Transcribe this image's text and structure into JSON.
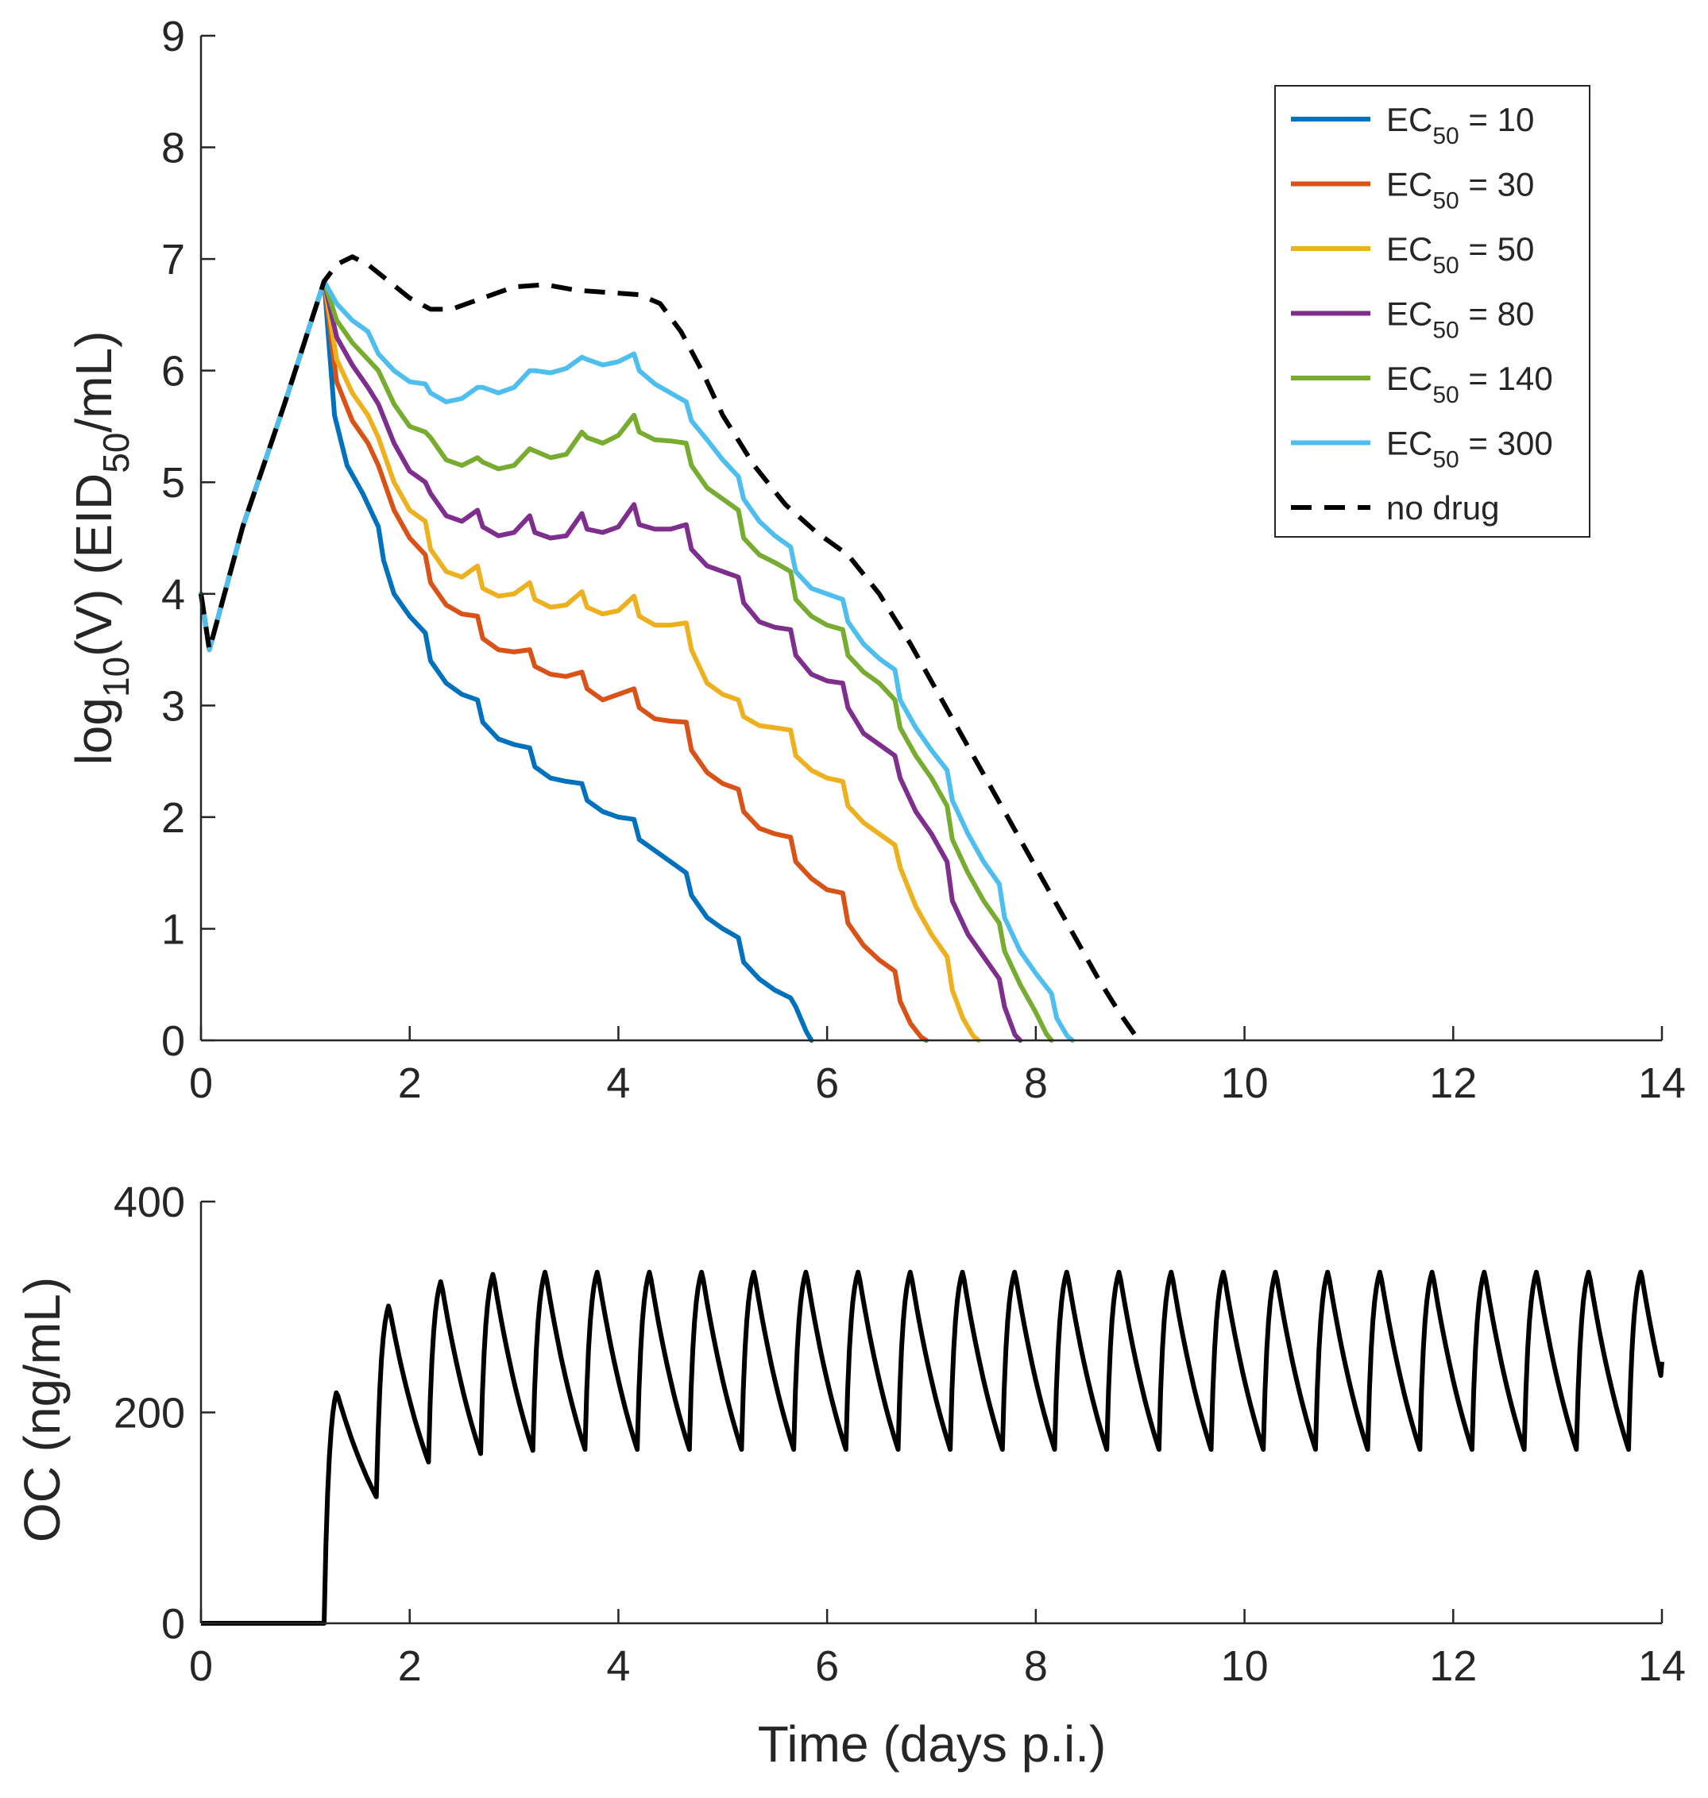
{
  "chart_data": [
    {
      "type": "line",
      "panel": "top",
      "ylabel": {
        "base": "log",
        "sub1": "10",
        "mid": "(V) (EID",
        "sub2": "50",
        "end": "/mL)"
      },
      "xlabel": "",
      "xlim": [
        0,
        14
      ],
      "ylim": [
        0,
        9
      ],
      "xticks": [
        0,
        2,
        4,
        6,
        8,
        10,
        12,
        14
      ],
      "xtick_labels": [
        "0",
        "2",
        "4",
        "6",
        "8",
        "10",
        "12",
        "14"
      ],
      "yticks": [
        0,
        1,
        2,
        3,
        4,
        5,
        6,
        7,
        8,
        9
      ],
      "ytick_labels": [
        "0",
        "1",
        "2",
        "3",
        "4",
        "5",
        "6",
        "7",
        "8",
        "9"
      ],
      "grid": false,
      "legend_position": "top-right",
      "shared_rise": {
        "x": [
          0.0,
          0.08,
          0.4,
          0.8,
          1.18
        ],
        "y": [
          4.0,
          3.5,
          4.6,
          5.7,
          6.8
        ]
      },
      "series": [
        {
          "name": "EC50 = 10",
          "legend": {
            "pre": "EC",
            "sub": "50",
            "post": " = 10"
          },
          "color": "#0072BD",
          "dash": false,
          "x": [
            1.18,
            1.28,
            1.4,
            1.55,
            1.7,
            1.75,
            1.85,
            2.0,
            2.15,
            2.2,
            2.35,
            2.5,
            2.65,
            2.7,
            2.85,
            3.0,
            3.15,
            3.2,
            3.35,
            3.5,
            3.65,
            3.7,
            3.85,
            4.0,
            4.15,
            4.2,
            4.35,
            4.5,
            4.65,
            4.7,
            4.85,
            5.0,
            5.15,
            5.2,
            5.35,
            5.5,
            5.65,
            5.7,
            5.8,
            5.85
          ],
          "y": [
            6.8,
            5.6,
            5.15,
            4.9,
            4.6,
            4.3,
            4.0,
            3.8,
            3.65,
            3.4,
            3.2,
            3.1,
            3.05,
            2.85,
            2.7,
            2.65,
            2.62,
            2.45,
            2.35,
            2.32,
            2.3,
            2.15,
            2.05,
            2.0,
            1.98,
            1.8,
            1.7,
            1.6,
            1.5,
            1.3,
            1.1,
            1.0,
            0.92,
            0.7,
            0.55,
            0.45,
            0.38,
            0.3,
            0.08,
            0.0
          ]
        },
        {
          "name": "EC50 = 30",
          "legend": {
            "pre": "EC",
            "sub": "50",
            "post": " = 30"
          },
          "color": "#D95319",
          "dash": false,
          "x": [
            1.18,
            1.3,
            1.45,
            1.6,
            1.7,
            1.85,
            2.0,
            2.15,
            2.2,
            2.35,
            2.5,
            2.65,
            2.7,
            2.85,
            3.0,
            3.15,
            3.2,
            3.35,
            3.5,
            3.65,
            3.7,
            3.85,
            4.0,
            4.15,
            4.2,
            4.35,
            4.5,
            4.65,
            4.7,
            4.85,
            5.0,
            5.15,
            5.2,
            5.35,
            5.5,
            5.65,
            5.7,
            5.85,
            6.0,
            6.15,
            6.2,
            6.35,
            6.5,
            6.65,
            6.7,
            6.8,
            6.9,
            6.95
          ],
          "y": [
            6.8,
            5.9,
            5.55,
            5.35,
            5.15,
            4.75,
            4.5,
            4.35,
            4.1,
            3.9,
            3.82,
            3.8,
            3.6,
            3.5,
            3.48,
            3.5,
            3.35,
            3.28,
            3.26,
            3.3,
            3.15,
            3.05,
            3.1,
            3.15,
            2.98,
            2.88,
            2.86,
            2.85,
            2.6,
            2.4,
            2.3,
            2.25,
            2.05,
            1.9,
            1.85,
            1.82,
            1.6,
            1.45,
            1.35,
            1.32,
            1.05,
            0.85,
            0.72,
            0.62,
            0.35,
            0.15,
            0.03,
            0.0
          ]
        },
        {
          "name": "EC50 = 50",
          "legend": {
            "pre": "EC",
            "sub": "50",
            "post": " = 50"
          },
          "color": "#EDB120",
          "dash": false,
          "x": [
            1.18,
            1.3,
            1.45,
            1.6,
            1.7,
            1.85,
            2.0,
            2.15,
            2.2,
            2.35,
            2.5,
            2.65,
            2.7,
            2.85,
            3.0,
            3.15,
            3.2,
            3.35,
            3.5,
            3.65,
            3.7,
            3.85,
            4.0,
            4.15,
            4.2,
            4.35,
            4.5,
            4.65,
            4.7,
            4.85,
            5.0,
            5.15,
            5.2,
            5.35,
            5.5,
            5.65,
            5.7,
            5.85,
            6.0,
            6.15,
            6.2,
            6.35,
            6.5,
            6.65,
            6.7,
            6.85,
            7.0,
            7.15,
            7.2,
            7.3,
            7.4,
            7.45
          ],
          "y": [
            6.8,
            6.1,
            5.8,
            5.6,
            5.4,
            5.0,
            4.75,
            4.65,
            4.4,
            4.2,
            4.15,
            4.25,
            4.05,
            3.98,
            4.0,
            4.1,
            3.95,
            3.88,
            3.9,
            4.02,
            3.88,
            3.82,
            3.85,
            3.98,
            3.8,
            3.72,
            3.72,
            3.74,
            3.5,
            3.2,
            3.1,
            3.05,
            2.9,
            2.82,
            2.8,
            2.78,
            2.55,
            2.42,
            2.35,
            2.32,
            2.1,
            1.95,
            1.85,
            1.75,
            1.55,
            1.2,
            0.95,
            0.75,
            0.45,
            0.2,
            0.04,
            0.0
          ]
        },
        {
          "name": "EC50 = 80",
          "legend": {
            "pre": "EC",
            "sub": "50",
            "post": " = 80"
          },
          "color": "#7E2F8E",
          "dash": false,
          "x": [
            1.18,
            1.3,
            1.45,
            1.6,
            1.7,
            1.85,
            2.0,
            2.15,
            2.2,
            2.35,
            2.5,
            2.65,
            2.7,
            2.85,
            3.0,
            3.15,
            3.2,
            3.35,
            3.5,
            3.65,
            3.7,
            3.85,
            4.0,
            4.15,
            4.2,
            4.35,
            4.5,
            4.65,
            4.7,
            4.85,
            5.0,
            5.15,
            5.2,
            5.35,
            5.5,
            5.65,
            5.7,
            5.85,
            6.0,
            6.15,
            6.2,
            6.35,
            6.5,
            6.65,
            6.7,
            6.85,
            7.0,
            7.15,
            7.2,
            7.35,
            7.5,
            7.65,
            7.7,
            7.8,
            7.85
          ],
          "y": [
            6.8,
            6.3,
            6.05,
            5.85,
            5.7,
            5.35,
            5.1,
            5.0,
            4.9,
            4.7,
            4.65,
            4.75,
            4.6,
            4.52,
            4.55,
            4.7,
            4.55,
            4.5,
            4.52,
            4.72,
            4.58,
            4.55,
            4.6,
            4.8,
            4.62,
            4.58,
            4.58,
            4.62,
            4.4,
            4.25,
            4.2,
            4.15,
            3.92,
            3.75,
            3.7,
            3.68,
            3.45,
            3.28,
            3.22,
            3.2,
            2.98,
            2.75,
            2.65,
            2.55,
            2.35,
            2.05,
            1.85,
            1.6,
            1.25,
            0.95,
            0.75,
            0.55,
            0.3,
            0.05,
            0.0
          ]
        },
        {
          "name": "EC50 = 140",
          "legend": {
            "pre": "EC",
            "sub": "50",
            "post": " = 140"
          },
          "color": "#77AC30",
          "dash": false,
          "x": [
            1.18,
            1.3,
            1.45,
            1.6,
            1.7,
            1.85,
            2.0,
            2.15,
            2.2,
            2.35,
            2.5,
            2.65,
            2.7,
            2.85,
            3.0,
            3.15,
            3.2,
            3.35,
            3.5,
            3.65,
            3.7,
            3.85,
            4.0,
            4.15,
            4.2,
            4.35,
            4.5,
            4.65,
            4.7,
            4.85,
            5.0,
            5.15,
            5.2,
            5.35,
            5.5,
            5.65,
            5.7,
            5.85,
            6.0,
            6.15,
            6.2,
            6.35,
            6.5,
            6.65,
            6.7,
            6.85,
            7.0,
            7.15,
            7.2,
            7.35,
            7.5,
            7.65,
            7.7,
            7.85,
            8.0,
            8.1,
            8.15
          ],
          "y": [
            6.8,
            6.45,
            6.25,
            6.1,
            6.0,
            5.7,
            5.5,
            5.45,
            5.4,
            5.2,
            5.15,
            5.22,
            5.18,
            5.12,
            5.15,
            5.3,
            5.28,
            5.22,
            5.25,
            5.45,
            5.4,
            5.35,
            5.42,
            5.6,
            5.45,
            5.38,
            5.37,
            5.35,
            5.15,
            4.95,
            4.85,
            4.75,
            4.5,
            4.35,
            4.28,
            4.2,
            3.95,
            3.8,
            3.72,
            3.68,
            3.45,
            3.3,
            3.2,
            3.05,
            2.8,
            2.55,
            2.35,
            2.1,
            1.8,
            1.5,
            1.25,
            1.05,
            0.8,
            0.5,
            0.25,
            0.06,
            0.0
          ]
        },
        {
          "name": "EC50 = 300",
          "legend": {
            "pre": "EC",
            "sub": "50",
            "post": " = 300"
          },
          "color": "#4DBEEE",
          "dash": false,
          "x": [
            1.18,
            1.3,
            1.45,
            1.6,
            1.7,
            1.85,
            2.0,
            2.15,
            2.2,
            2.35,
            2.5,
            2.65,
            2.7,
            2.85,
            3.0,
            3.15,
            3.2,
            3.35,
            3.5,
            3.65,
            3.7,
            3.85,
            4.0,
            4.15,
            4.2,
            4.35,
            4.5,
            4.65,
            4.7,
            4.85,
            5.0,
            5.15,
            5.2,
            5.35,
            5.5,
            5.65,
            5.7,
            5.85,
            6.0,
            6.15,
            6.2,
            6.35,
            6.5,
            6.65,
            6.7,
            6.85,
            7.0,
            7.15,
            7.2,
            7.35,
            7.5,
            7.65,
            7.7,
            7.85,
            8.0,
            8.15,
            8.2,
            8.3,
            8.35
          ],
          "y": [
            6.75,
            6.6,
            6.45,
            6.35,
            6.15,
            6.0,
            5.9,
            5.88,
            5.8,
            5.72,
            5.75,
            5.85,
            5.85,
            5.8,
            5.85,
            6.0,
            6.0,
            5.98,
            6.02,
            6.12,
            6.1,
            6.05,
            6.08,
            6.15,
            6.0,
            5.88,
            5.8,
            5.72,
            5.55,
            5.38,
            5.2,
            5.05,
            4.85,
            4.65,
            4.52,
            4.42,
            4.2,
            4.05,
            4.0,
            3.95,
            3.75,
            3.55,
            3.42,
            3.32,
            3.05,
            2.8,
            2.6,
            2.42,
            2.15,
            1.85,
            1.6,
            1.4,
            1.1,
            0.8,
            0.6,
            0.42,
            0.2,
            0.04,
            0.0
          ]
        },
        {
          "name": "no drug",
          "legend": {
            "pre": "no drug",
            "sub": "",
            "post": ""
          },
          "color": "#000000",
          "dash": true,
          "x": [
            1.18,
            1.3,
            1.45,
            1.6,
            1.8,
            2.0,
            2.2,
            2.4,
            2.7,
            3.0,
            3.3,
            3.6,
            3.9,
            4.2,
            4.4,
            4.6,
            4.8,
            5.0,
            5.3,
            5.6,
            5.9,
            6.2,
            6.5,
            6.8,
            7.1,
            7.4,
            7.7,
            8.0,
            8.3,
            8.6,
            8.8,
            8.95,
            9.0
          ],
          "y": [
            6.8,
            6.95,
            7.02,
            6.95,
            6.8,
            6.65,
            6.55,
            6.55,
            6.65,
            6.75,
            6.77,
            6.72,
            6.7,
            6.68,
            6.6,
            6.35,
            6.0,
            5.6,
            5.15,
            4.8,
            4.55,
            4.35,
            4.0,
            3.55,
            3.05,
            2.55,
            2.05,
            1.55,
            1.05,
            0.55,
            0.25,
            0.05,
            0.0
          ]
        }
      ]
    },
    {
      "type": "line",
      "panel": "bottom",
      "ylabel": "OC (ng/mL)",
      "xlabel": "Time (days p.i.)",
      "xlim": [
        0,
        14
      ],
      "ylim": [
        0,
        400
      ],
      "xticks": [
        0,
        2,
        4,
        6,
        8,
        10,
        12,
        14
      ],
      "xtick_labels": [
        "0",
        "2",
        "4",
        "6",
        "8",
        "10",
        "12",
        "14"
      ],
      "yticks": [
        0,
        200,
        400
      ],
      "ytick_labels": [
        "0",
        "200",
        "400"
      ],
      "grid": false,
      "dosing": {
        "first_dose_day": 1.18,
        "interval_days": 0.5,
        "end_day": 14.0
      },
      "peaks": [
        220,
        302,
        325,
        332,
        334,
        334,
        334,
        334,
        334,
        334,
        334,
        334,
        334,
        334,
        334,
        334,
        334,
        334,
        334,
        334,
        334,
        334,
        334,
        334,
        334,
        334
      ],
      "troughs": [
        120,
        153,
        161,
        164,
        165,
        165,
        165,
        165,
        165,
        165,
        165,
        165,
        165,
        165,
        165,
        165,
        165,
        165,
        165,
        165,
        165,
        165,
        165,
        165,
        165
      ],
      "end_value": 248,
      "series": [
        {
          "name": "OC",
          "color": "#000000"
        }
      ]
    }
  ]
}
